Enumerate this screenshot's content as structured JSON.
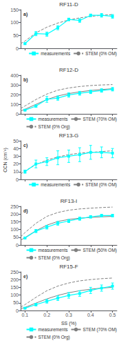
{
  "chart_data": [
    {
      "type": "line",
      "title": "RF11-D",
      "annotation": "a)",
      "xlim": [
        0.08,
        0.52
      ],
      "xticks": [
        0.1,
        0.2,
        0.3,
        0.4,
        0.5
      ],
      "ylim": [
        0,
        150
      ],
      "yticks": [
        0,
        50,
        100,
        150
      ],
      "grid": false,
      "legend": "lower right",
      "tick_labels": "y",
      "series": [
        {
          "name": "measurements",
          "color": "cyan",
          "marker": "square",
          "line_style": "solid",
          "x": [
            0.1,
            0.15,
            0.2,
            0.25,
            0.3,
            0.35,
            0.4,
            0.45,
            0.5
          ],
          "values": [
            18,
            57,
            55,
            80,
            112,
            108,
            128,
            128,
            124
          ],
          "yerr": [
            3,
            8,
            8,
            8,
            5,
            7,
            5,
            7,
            7
          ]
        },
        {
          "name": "STEM (0% OM)",
          "color": "#808080",
          "line_style": "dashed",
          "x": [
            0.08,
            0.1,
            0.15,
            0.2,
            0.25,
            0.3,
            0.35,
            0.4,
            0.45,
            0.5
          ],
          "values": [
            18,
            28,
            60,
            82,
            98,
            110,
            118,
            124,
            128,
            131
          ]
        }
      ]
    },
    {
      "type": "line",
      "title": "RF12-D",
      "annotation": "b)",
      "xlim": [
        0.08,
        0.52
      ],
      "xticks": [
        0.1,
        0.2,
        0.3,
        0.4,
        0.5
      ],
      "ylim": [
        0,
        400
      ],
      "yticks": [
        0,
        100,
        200,
        300,
        400
      ],
      "grid": false,
      "legend": "lower right",
      "tick_labels": "y",
      "series": [
        {
          "name": "measurements",
          "color": "cyan",
          "marker": "square",
          "line_style": "solid",
          "x": [
            0.1,
            0.15,
            0.2,
            0.25,
            0.3,
            0.35,
            0.4,
            0.45,
            0.5
          ],
          "values": [
            38,
            80,
            150,
            163,
            195,
            213,
            228,
            242,
            255
          ],
          "yerr": [
            5,
            12,
            30,
            22,
            22,
            20,
            18,
            18,
            18
          ]
        },
        {
          "name": "STEM (70% OM)",
          "color": "#808080",
          "line_style": "solid",
          "x": [
            0.08,
            0.1,
            0.15,
            0.2,
            0.25,
            0.3,
            0.35,
            0.4,
            0.45,
            0.5
          ],
          "values": [
            30,
            48,
            98,
            148,
            185,
            210,
            228,
            242,
            252,
            260
          ]
        },
        {
          "name": "STEM (0% Org)",
          "color": "#808080",
          "line_style": "dashed",
          "x": [
            0.08,
            0.1,
            0.15,
            0.2,
            0.25,
            0.3,
            0.35,
            0.4,
            0.45,
            0.5
          ],
          "values": [
            55,
            82,
            148,
            205,
            245,
            268,
            283,
            293,
            299,
            303
          ]
        }
      ]
    },
    {
      "type": "line",
      "title": "RF13-G",
      "annotation": "c)",
      "ylabel": "CCN (cm⁻³)",
      "xlim": [
        0.08,
        0.52
      ],
      "xticks": [
        0.1,
        0.2,
        0.3,
        0.4,
        0.5
      ],
      "ylim": [
        0,
        50
      ],
      "yticks": [
        0,
        10,
        20,
        30,
        40,
        50
      ],
      "grid": false,
      "legend": "lower right",
      "tick_labels": "y",
      "series": [
        {
          "name": "measurements",
          "color": "cyan",
          "marker": "square",
          "line_style": "solid",
          "x": [
            0.1,
            0.15,
            0.2,
            0.25,
            0.3,
            0.35,
            0.4,
            0.45,
            0.5
          ],
          "values": [
            10,
            20,
            23,
            28,
            30,
            32,
            35,
            35,
            34
          ],
          "yerr": [
            2,
            5,
            5,
            9,
            8,
            9,
            9,
            7,
            6
          ]
        },
        {
          "name": "STEM (0% OM)",
          "color": "#808080",
          "line_style": "dashed",
          "x": [
            0.08,
            0.1,
            0.15,
            0.2,
            0.25,
            0.3,
            0.35,
            0.4,
            0.45,
            0.5
          ],
          "values": [
            7,
            11,
            19,
            25,
            29,
            32,
            34,
            35,
            36,
            37
          ]
        }
      ]
    },
    {
      "type": "line",
      "title": "RF13-I",
      "annotation": "d)",
      "xlim": [
        0.08,
        0.52
      ],
      "xticks": [
        0.1,
        0.2,
        0.3,
        0.4,
        0.5
      ],
      "ylim": [
        0,
        250
      ],
      "yticks": [
        0,
        50,
        100,
        150,
        200,
        250
      ],
      "grid": false,
      "legend": "lower right",
      "tick_labels": "y",
      "series": [
        {
          "name": "measurements",
          "color": "cyan",
          "marker": "square",
          "line_style": "solid",
          "x": [
            0.1,
            0.15,
            0.2,
            0.25,
            0.3,
            0.35,
            0.4,
            0.45,
            0.5
          ],
          "values": [
            45,
            90,
            115,
            140,
            155,
            170,
            182,
            190,
            190
          ],
          "yerr": [
            5,
            10,
            12,
            12,
            10,
            10,
            8,
            8,
            8
          ]
        },
        {
          "name": "STEM (50% OM)",
          "color": "#808080",
          "line_style": "solid",
          "x": [
            0.08,
            0.1,
            0.15,
            0.2,
            0.25,
            0.3,
            0.35,
            0.4,
            0.45,
            0.5
          ],
          "values": [
            30,
            48,
            92,
            128,
            152,
            165,
            173,
            178,
            182,
            185
          ]
        },
        {
          "name": "STEM (0% Org)",
          "color": "#808080",
          "line_style": "dashed",
          "x": [
            0.08,
            0.1,
            0.15,
            0.2,
            0.25,
            0.3,
            0.35,
            0.4,
            0.45,
            0.5
          ],
          "values": [
            52,
            80,
            140,
            185,
            210,
            225,
            233,
            238,
            242,
            245
          ]
        }
      ]
    },
    {
      "type": "line",
      "title": "RF15-F",
      "annotation": "e)",
      "xlabel": "SS (%)",
      "xlim": [
        0.08,
        0.52
      ],
      "xticks": [
        0.1,
        0.2,
        0.3,
        0.4,
        0.5
      ],
      "ylim": [
        0,
        250
      ],
      "yticks": [
        0,
        50,
        100,
        150,
        200,
        250
      ],
      "grid": false,
      "legend": "lower right",
      "series": [
        {
          "name": "measurements",
          "color": "cyan",
          "marker": "square",
          "line_style": "solid",
          "x": [
            0.1,
            0.15,
            0.2,
            0.25,
            0.3,
            0.35,
            0.4,
            0.45,
            0.5
          ],
          "values": [
            15,
            38,
            60,
            80,
            98,
            110,
            130,
            145,
            158
          ],
          "yerr": [
            3,
            8,
            12,
            15,
            18,
            18,
            20,
            20,
            20
          ]
        },
        {
          "name": "STEM (70% OM)",
          "color": "#808080",
          "line_style": "solid",
          "x": [
            0.08,
            0.1,
            0.15,
            0.2,
            0.25,
            0.3,
            0.35,
            0.4,
            0.45,
            0.5
          ],
          "values": [
            12,
            20,
            48,
            75,
            98,
            115,
            128,
            138,
            145,
            150
          ]
        },
        {
          "name": "STEM (0% Org)",
          "color": "#808080",
          "line_style": "dashed",
          "x": [
            0.08,
            0.1,
            0.15,
            0.2,
            0.25,
            0.3,
            0.35,
            0.4,
            0.45,
            0.5
          ],
          "values": [
            22,
            38,
            85,
            128,
            158,
            178,
            192,
            200,
            206,
            210
          ]
        }
      ]
    }
  ]
}
